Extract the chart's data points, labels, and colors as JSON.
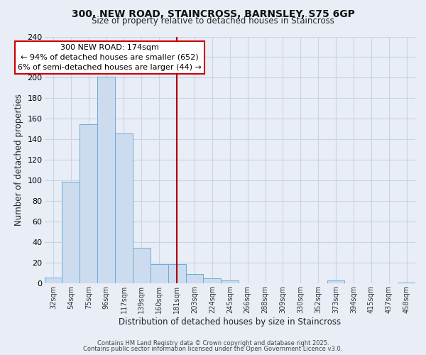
{
  "title": "300, NEW ROAD, STAINCROSS, BARNSLEY, S75 6GP",
  "subtitle": "Size of property relative to detached houses in Staincross",
  "xlabel": "Distribution of detached houses by size in Staincross",
  "ylabel": "Number of detached properties",
  "bin_labels": [
    "32sqm",
    "54sqm",
    "75sqm",
    "96sqm",
    "117sqm",
    "139sqm",
    "160sqm",
    "181sqm",
    "203sqm",
    "224sqm",
    "245sqm",
    "266sqm",
    "288sqm",
    "309sqm",
    "330sqm",
    "352sqm",
    "373sqm",
    "394sqm",
    "415sqm",
    "437sqm",
    "458sqm"
  ],
  "bar_heights": [
    6,
    99,
    155,
    201,
    146,
    35,
    19,
    19,
    9,
    5,
    3,
    0,
    0,
    0,
    0,
    0,
    3,
    0,
    0,
    0,
    1
  ],
  "bar_color": "#ccdcee",
  "bar_edge_color": "#6aabda",
  "grid_color": "#c8d4e8",
  "background_color": "#e8edf6",
  "vline_x_index": 7,
  "vline_color": "#aa0000",
  "annotation_title": "300 NEW ROAD: 174sqm",
  "annotation_line1": "← 94% of detached houses are smaller (652)",
  "annotation_line2": "6% of semi-detached houses are larger (44) →",
  "ann_box_color": "#ffffff",
  "ann_border_color": "#cc0000",
  "ann_text_color": "#000000",
  "ylim": [
    0,
    240
  ],
  "yticks": [
    0,
    20,
    40,
    60,
    80,
    100,
    120,
    140,
    160,
    180,
    200,
    220,
    240
  ],
  "footnote1": "Contains HM Land Registry data © Crown copyright and database right 2025.",
  "footnote2": "Contains public sector information licensed under the Open Government Licence v3.0."
}
